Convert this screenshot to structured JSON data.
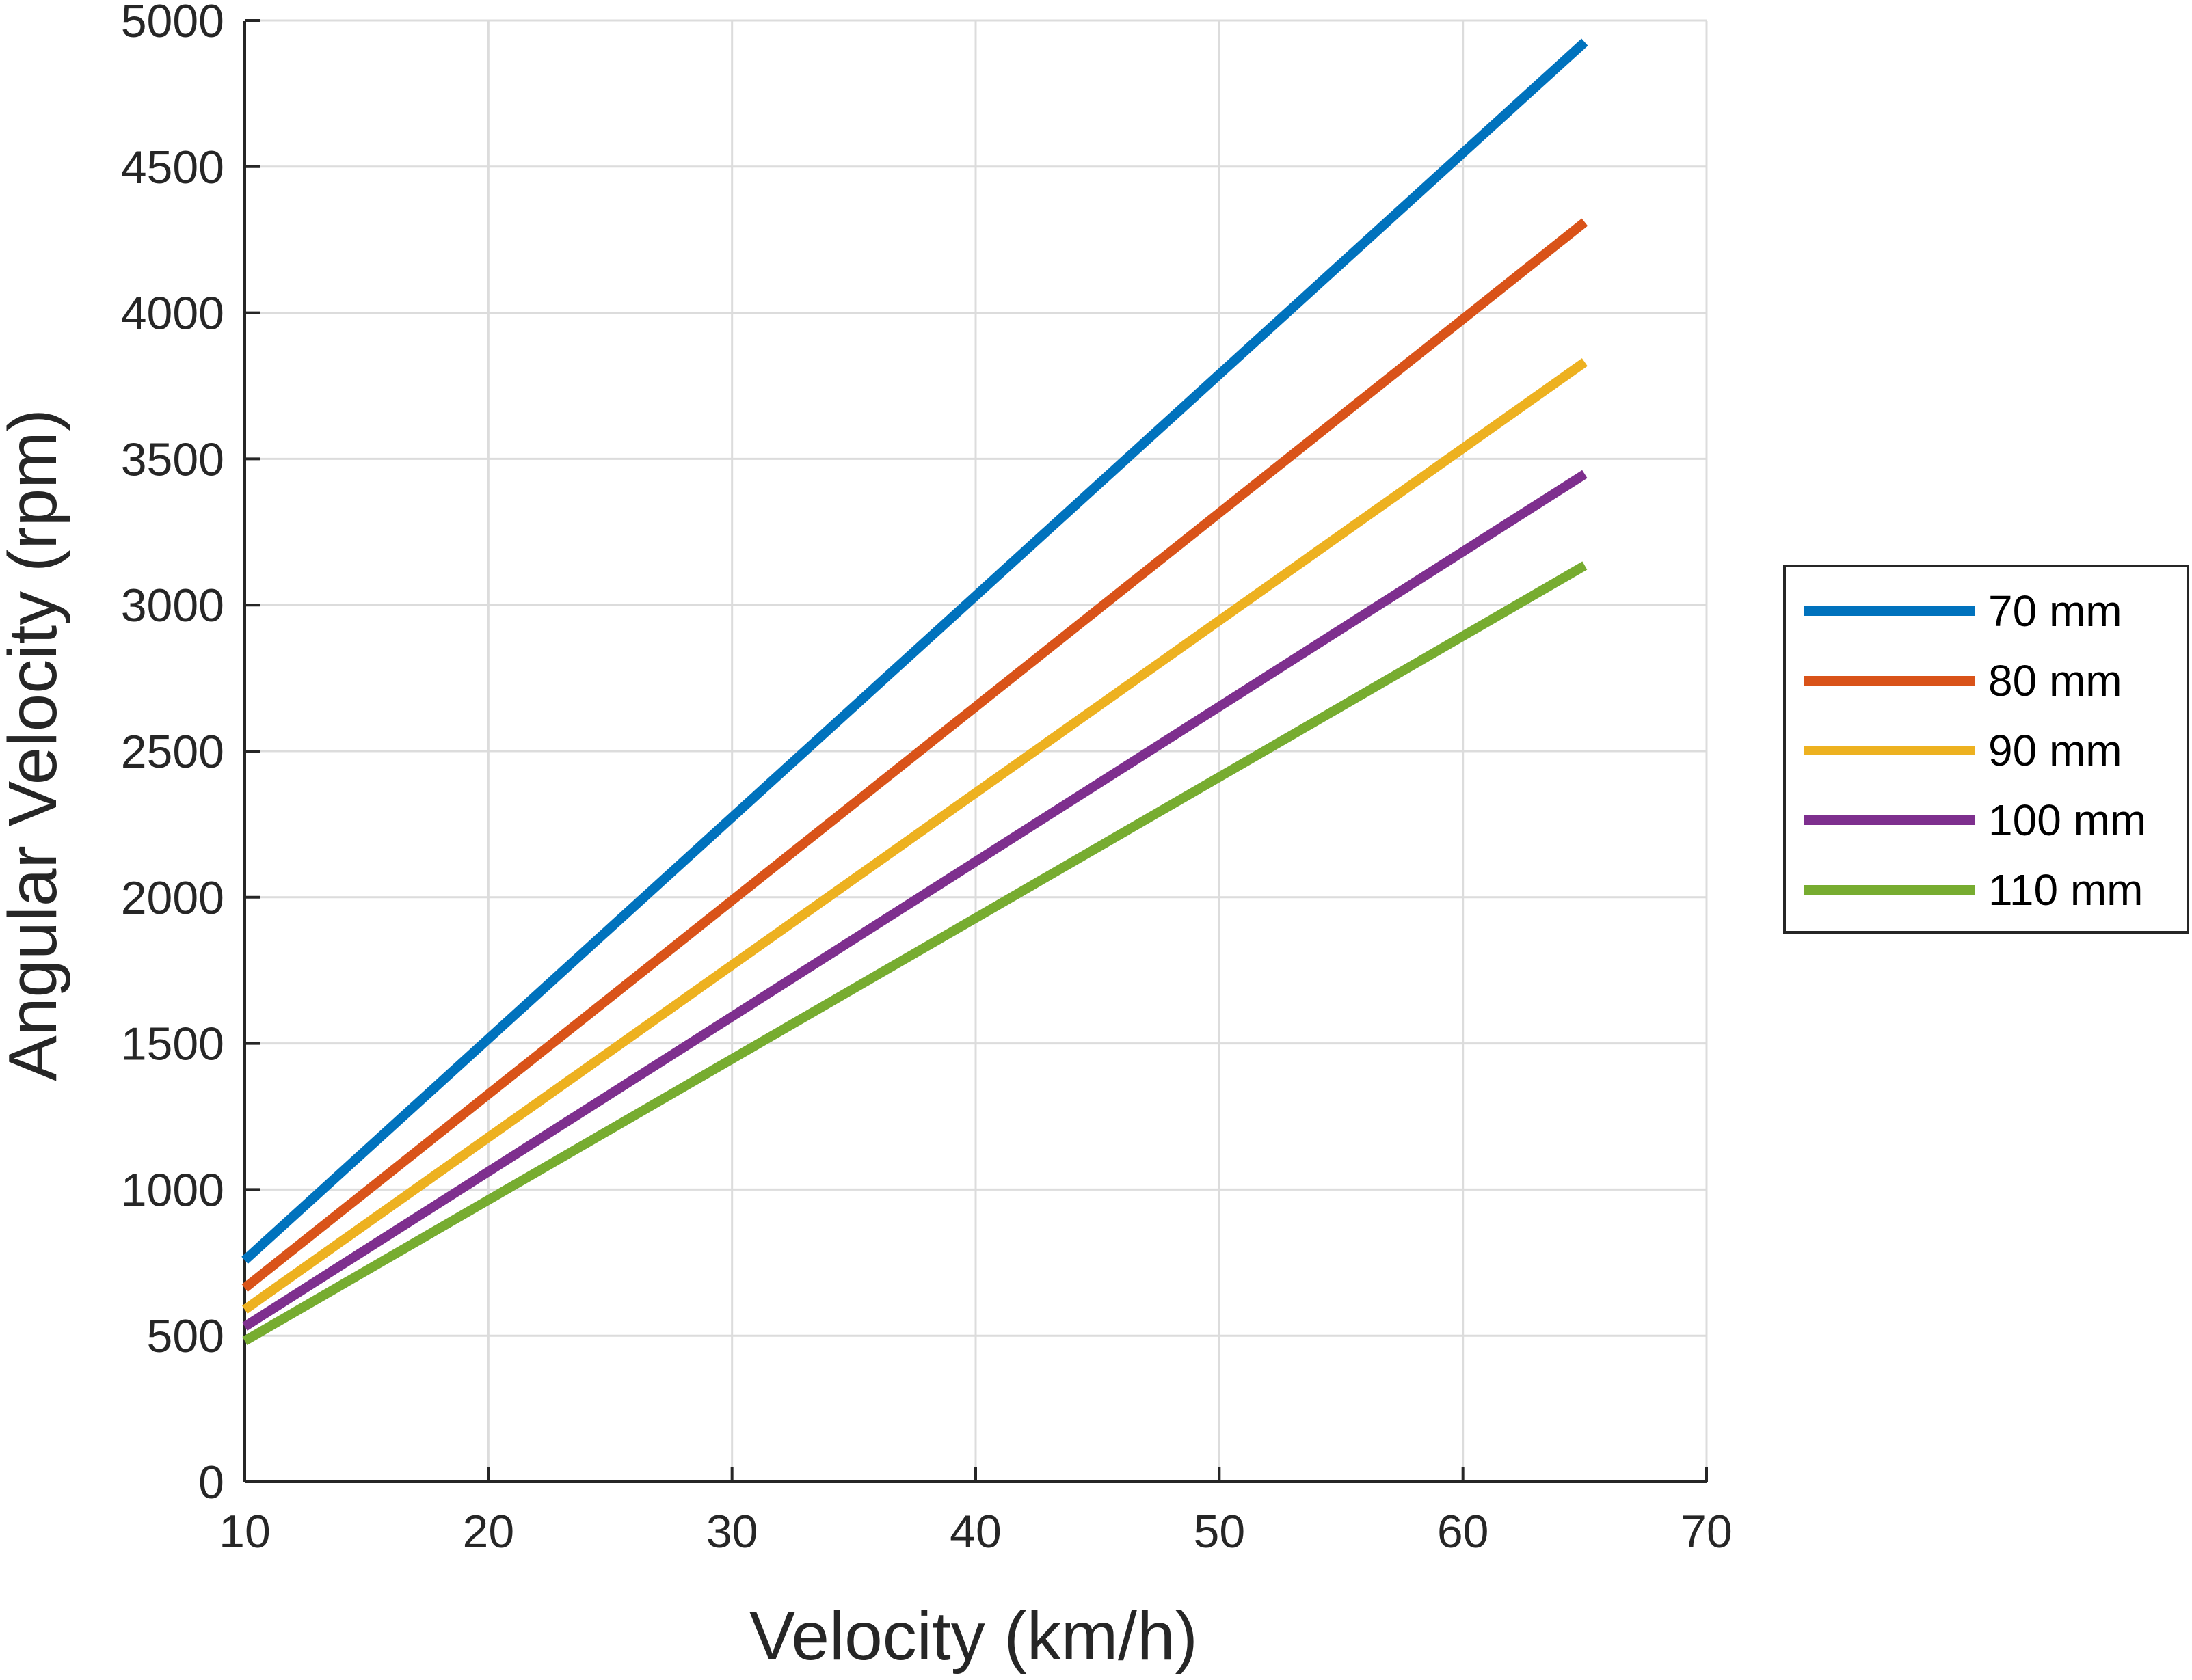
{
  "chart_data": {
    "type": "line",
    "xlabel": "Velocity (km/h)",
    "ylabel": "Angular Velocity (rpm)",
    "xlim": [
      10,
      70
    ],
    "ylim": [
      0,
      5000
    ],
    "xticks": [
      10,
      20,
      30,
      40,
      50,
      60,
      70
    ],
    "yticks": [
      0,
      500,
      1000,
      1500,
      2000,
      2500,
      3000,
      3500,
      4000,
      4500,
      5000
    ],
    "grid": true,
    "legend_position": "outside-right",
    "series": [
      {
        "name": "70 mm",
        "color": "#0072BD",
        "x": [
          10,
          65
        ],
        "y": [
          758,
          4926
        ]
      },
      {
        "name": "80 mm",
        "color": "#D95319",
        "x": [
          10,
          65
        ],
        "y": [
          663,
          4310
        ]
      },
      {
        "name": "90 mm",
        "color": "#EDB120",
        "x": [
          10,
          65
        ],
        "y": [
          589,
          3831
        ]
      },
      {
        "name": "100 mm",
        "color": "#7E2F8E",
        "x": [
          10,
          65
        ],
        "y": [
          531,
          3448
        ]
      },
      {
        "name": "110 mm",
        "color": "#77AC30",
        "x": [
          10,
          65
        ],
        "y": [
          482,
          3135
        ]
      }
    ]
  }
}
